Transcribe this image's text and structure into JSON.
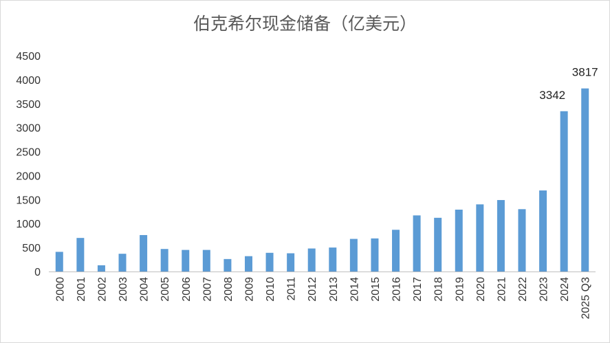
{
  "chart_data": {
    "type": "bar",
    "title": "伯克希尔现金储备（亿美元）",
    "xlabel": "",
    "ylabel": "",
    "categories": [
      "2000",
      "2001",
      "2002",
      "2003",
      "2004",
      "2005",
      "2006",
      "2007",
      "2008",
      "2009",
      "2010",
      "2011",
      "2012",
      "2013",
      "2014",
      "2015",
      "2016",
      "2017",
      "2018",
      "2019",
      "2020",
      "2021",
      "2022",
      "2023",
      "2024",
      "2025 Q3"
    ],
    "values": [
      410,
      700,
      130,
      370,
      760,
      470,
      450,
      450,
      260,
      320,
      390,
      380,
      480,
      500,
      680,
      690,
      870,
      1170,
      1120,
      1290,
      1400,
      1490,
      1300,
      1690,
      3342,
      3817
    ],
    "data_labels": [
      {
        "index": 24,
        "text": "3342"
      },
      {
        "index": 25,
        "text": "3817"
      }
    ],
    "ylim": [
      0,
      4500
    ],
    "yticks": [
      0,
      500,
      1000,
      1500,
      2000,
      2500,
      3000,
      3500,
      4000,
      4500
    ],
    "bar_color": "#5b9bd5",
    "grid": false,
    "legend": "none"
  }
}
